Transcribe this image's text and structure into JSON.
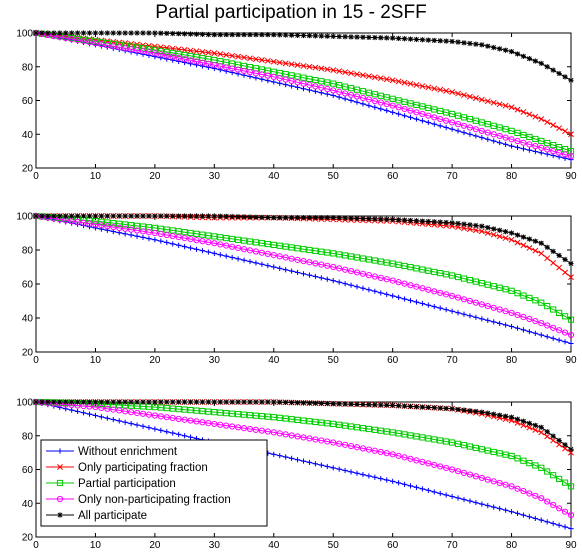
{
  "title": "Partial participation in 15 - 2SFF",
  "chart_data": [
    {
      "type": "line",
      "xlim": [
        0,
        90
      ],
      "ylim": [
        20,
        100
      ],
      "xticks": [
        0,
        10,
        20,
        30,
        40,
        50,
        60,
        70,
        80,
        90
      ],
      "yticks": [
        20,
        40,
        60,
        80,
        100
      ],
      "legend": null,
      "series": [
        {
          "key": "s1",
          "color": "#0000ff",
          "marker": "plus",
          "x": [
            0,
            10,
            20,
            30,
            40,
            50,
            60,
            70,
            80,
            85,
            90
          ],
          "values": [
            100,
            93,
            86,
            79,
            71,
            63,
            53,
            43,
            33,
            29,
            25
          ]
        },
        {
          "key": "s2",
          "color": "#ff0000",
          "marker": "x",
          "x": [
            0,
            10,
            20,
            30,
            40,
            50,
            60,
            70,
            80,
            85,
            90
          ],
          "values": [
            100,
            96,
            92,
            88,
            83,
            78,
            72,
            65,
            56,
            49,
            40
          ]
        },
        {
          "key": "s3",
          "color": "#00cc00",
          "marker": "square",
          "x": [
            0,
            10,
            20,
            30,
            40,
            50,
            60,
            70,
            80,
            85,
            90
          ],
          "values": [
            100,
            95,
            90,
            84,
            77,
            70,
            61,
            52,
            42,
            36,
            30
          ]
        },
        {
          "key": "s4",
          "color": "#ff00ff",
          "marker": "circle",
          "x": [
            0,
            10,
            20,
            30,
            40,
            50,
            60,
            70,
            80,
            85,
            90
          ],
          "values": [
            100,
            94,
            88,
            81,
            74,
            66,
            57,
            47,
            37,
            32,
            27
          ]
        },
        {
          "key": "s5",
          "color": "#000000",
          "marker": "star",
          "x": [
            0,
            10,
            20,
            30,
            40,
            50,
            60,
            70,
            75,
            80,
            85,
            90
          ],
          "values": [
            100,
            100,
            100,
            99,
            99,
            98,
            97,
            95,
            93,
            89,
            82,
            72
          ]
        }
      ]
    },
    {
      "type": "line",
      "xlim": [
        0,
        90
      ],
      "ylim": [
        20,
        100
      ],
      "xticks": [
        0,
        10,
        20,
        30,
        40,
        50,
        60,
        70,
        80,
        90
      ],
      "yticks": [
        20,
        40,
        60,
        80,
        100
      ],
      "legend": null,
      "series": [
        {
          "key": "s1",
          "color": "#0000ff",
          "marker": "plus",
          "x": [
            0,
            10,
            20,
            30,
            40,
            50,
            60,
            70,
            80,
            85,
            90
          ],
          "values": [
            100,
            93,
            86,
            78,
            70,
            62,
            53,
            44,
            35,
            30,
            25
          ]
        },
        {
          "key": "s2",
          "color": "#ff0000",
          "marker": "x",
          "x": [
            0,
            10,
            20,
            30,
            40,
            50,
            60,
            70,
            75,
            80,
            85,
            90
          ],
          "values": [
            100,
            100,
            100,
            99,
            99,
            98,
            97,
            94,
            91,
            86,
            78,
            64
          ]
        },
        {
          "key": "s3",
          "color": "#00cc00",
          "marker": "square",
          "x": [
            0,
            10,
            20,
            30,
            40,
            50,
            60,
            70,
            80,
            85,
            90
          ],
          "values": [
            100,
            97,
            93,
            88,
            83,
            78,
            72,
            65,
            56,
            49,
            39
          ]
        },
        {
          "key": "s4",
          "color": "#ff00ff",
          "marker": "circle",
          "x": [
            0,
            10,
            20,
            30,
            40,
            50,
            60,
            70,
            80,
            85,
            90
          ],
          "values": [
            100,
            95,
            90,
            84,
            77,
            70,
            62,
            53,
            43,
            37,
            30
          ]
        },
        {
          "key": "s5",
          "color": "#000000",
          "marker": "star",
          "x": [
            0,
            10,
            20,
            30,
            40,
            50,
            60,
            70,
            75,
            80,
            85,
            90
          ],
          "values": [
            100,
            100,
            100,
            100,
            99,
            99,
            98,
            96,
            94,
            90,
            84,
            72
          ]
        }
      ]
    },
    {
      "type": "line",
      "xlim": [
        0,
        90
      ],
      "ylim": [
        20,
        100
      ],
      "xticks": [
        0,
        10,
        20,
        30,
        40,
        50,
        60,
        70,
        80,
        90
      ],
      "yticks": [
        20,
        40,
        60,
        80,
        100
      ],
      "legend": "bottom-left",
      "series": [
        {
          "key": "s1",
          "name": "Without enrichment",
          "color": "#0000ff",
          "marker": "plus",
          "x": [
            0,
            10,
            20,
            30,
            40,
            50,
            60,
            70,
            80,
            85,
            90
          ],
          "values": [
            100,
            92,
            84,
            76,
            69,
            61,
            53,
            44,
            35,
            30,
            25
          ]
        },
        {
          "key": "s2",
          "name": "Only participating fraction",
          "color": "#ff0000",
          "marker": "x",
          "x": [
            0,
            10,
            20,
            30,
            40,
            50,
            60,
            70,
            75,
            80,
            85,
            90
          ],
          "values": [
            100,
            100,
            100,
            100,
            100,
            99,
            98,
            96,
            93,
            89,
            82,
            70
          ]
        },
        {
          "key": "s3",
          "name": "Partial participation",
          "color": "#00cc00",
          "marker": "square",
          "x": [
            0,
            10,
            20,
            30,
            40,
            50,
            60,
            70,
            80,
            85,
            90
          ],
          "values": [
            100,
            99,
            97,
            94,
            91,
            87,
            82,
            76,
            68,
            61,
            50
          ]
        },
        {
          "key": "s4",
          "name": "Only non-participating fraction",
          "color": "#ff00ff",
          "marker": "circle",
          "x": [
            0,
            10,
            20,
            30,
            40,
            50,
            60,
            70,
            80,
            85,
            90
          ],
          "values": [
            100,
            97,
            92,
            87,
            82,
            76,
            69,
            60,
            50,
            43,
            33
          ]
        },
        {
          "key": "s5",
          "name": "All participate",
          "color": "#000000",
          "marker": "star",
          "x": [
            0,
            10,
            20,
            30,
            40,
            50,
            60,
            70,
            75,
            80,
            85,
            90
          ],
          "values": [
            100,
            100,
            100,
            100,
            100,
            99,
            98,
            96,
            94,
            91,
            85,
            72
          ]
        }
      ]
    }
  ]
}
